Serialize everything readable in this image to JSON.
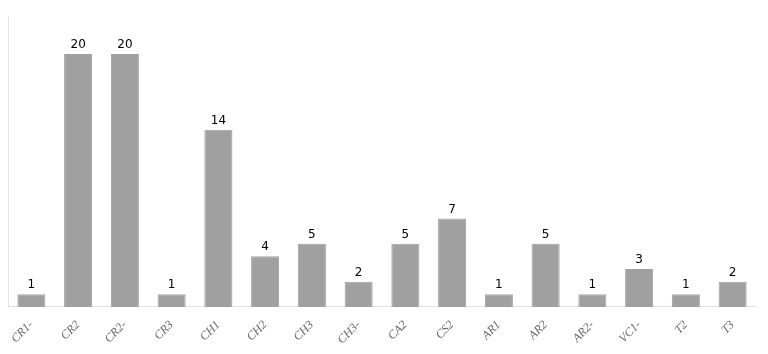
{
  "chart_data": {
    "type": "bar",
    "categories": [
      "CR1-",
      "CR2",
      "CR2-",
      "CR3",
      "CH1",
      "CH2",
      "CH3",
      "CH3-",
      "CA2",
      "CS2",
      "AR1",
      "AR2",
      "AR2-",
      "VC1-",
      "T2",
      "T3"
    ],
    "values": [
      1,
      20,
      20,
      1,
      14,
      4,
      5,
      2,
      5,
      7,
      1,
      5,
      1,
      3,
      1,
      2
    ],
    "color": "#a0a0a0",
    "ylim": [
      0,
      23
    ],
    "grid": false,
    "data_labels": true,
    "tick_labels": "x"
  }
}
